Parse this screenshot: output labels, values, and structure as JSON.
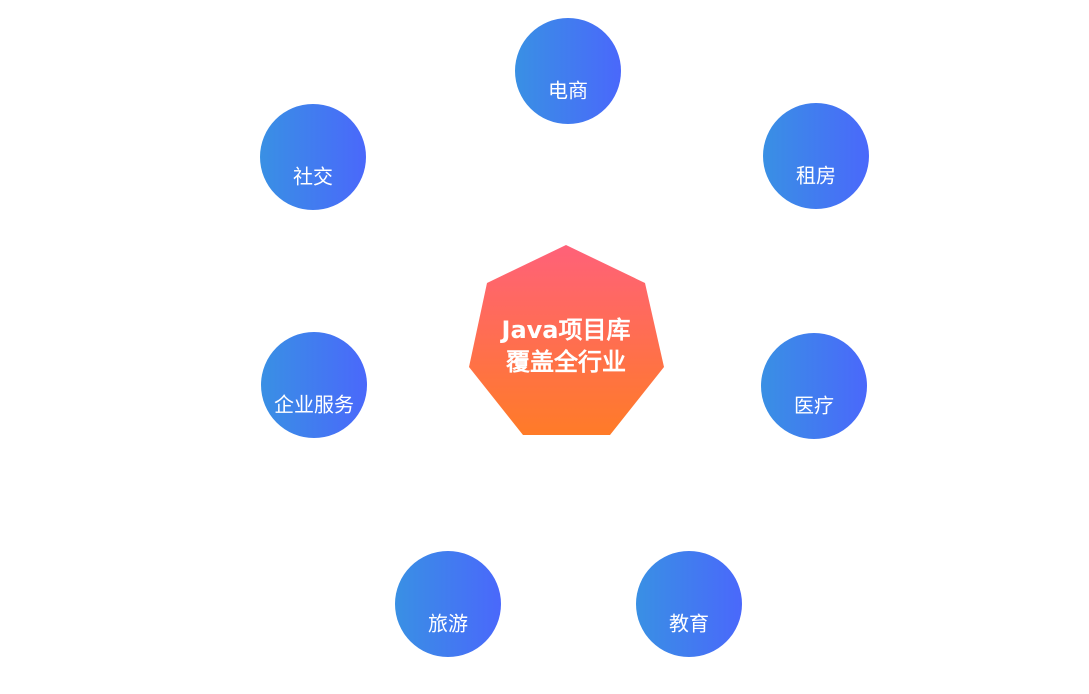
{
  "center": {
    "lines": [
      "Java项目库",
      "覆盖全行业"
    ]
  },
  "nodes": [
    {
      "label": "电商"
    },
    {
      "label": "租房"
    },
    {
      "label": "医疗"
    },
    {
      "label": "教育"
    },
    {
      "label": "旅游"
    },
    {
      "label": "企业服务"
    },
    {
      "label": "社交"
    }
  ]
}
